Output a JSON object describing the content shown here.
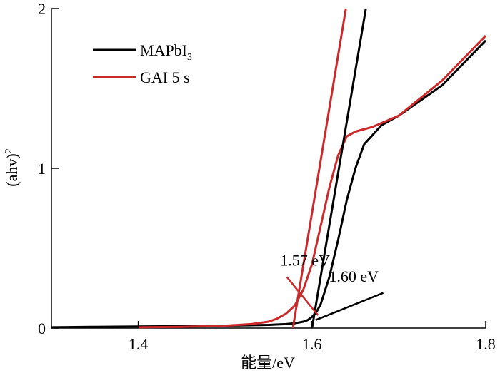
{
  "chart_data": {
    "type": "line",
    "title": "",
    "xlabel": "能量/eV",
    "ylabel": "(ahv)",
    "ylabel_sup": "2",
    "xlim": [
      1.3,
      1.8
    ],
    "ylim": [
      0,
      2
    ],
    "xticks": [
      1.4,
      1.6,
      1.8
    ],
    "yticks": [
      0,
      1,
      2
    ],
    "xtick_labels": [
      "1.4",
      "1.6",
      "1.8"
    ],
    "ytick_labels": [
      "0",
      "1",
      "2"
    ],
    "grid": false,
    "legend_position": "top-left",
    "series": [
      {
        "name": "MAPbI",
        "name_sub": "3",
        "color": "#000000",
        "x": [
          1.3,
          1.35,
          1.4,
          1.45,
          1.5,
          1.55,
          1.57,
          1.58,
          1.59,
          1.595,
          1.6,
          1.605,
          1.61,
          1.62,
          1.63,
          1.64,
          1.65,
          1.66,
          1.68,
          1.7,
          1.75,
          1.8
        ],
        "y": [
          0.005,
          0.008,
          0.01,
          0.012,
          0.015,
          0.02,
          0.025,
          0.03,
          0.04,
          0.05,
          0.07,
          0.1,
          0.15,
          0.32,
          0.55,
          0.8,
          1.0,
          1.15,
          1.27,
          1.33,
          1.52,
          1.8
        ]
      },
      {
        "name": "GAI 5 s",
        "color": "#cc2a2a",
        "x": [
          1.4,
          1.45,
          1.5,
          1.53,
          1.55,
          1.56,
          1.57,
          1.58,
          1.59,
          1.6,
          1.61,
          1.62,
          1.63,
          1.64,
          1.65,
          1.67,
          1.7,
          1.75,
          1.8
        ],
        "y": [
          0.005,
          0.008,
          0.015,
          0.025,
          0.04,
          0.06,
          0.09,
          0.14,
          0.24,
          0.4,
          0.64,
          0.88,
          1.08,
          1.2,
          1.23,
          1.26,
          1.33,
          1.55,
          1.83
        ]
      }
    ],
    "tangent_lines": [
      {
        "color": "#cc2a2a",
        "x": [
          1.578,
          1.639
        ],
        "y": [
          0,
          2
        ]
      },
      {
        "color": "#000000",
        "x": [
          1.6,
          1.662
        ],
        "y": [
          0,
          2
        ]
      }
    ],
    "annotations": [
      {
        "text": "1.57 eV",
        "color": "#cc2a2a",
        "text_x": 1.592,
        "text_y": 0.39,
        "line_from": [
          1.571,
          0.32
        ],
        "line_to": [
          1.607,
          0.08
        ]
      },
      {
        "text": "1.60 eV",
        "color": "#000000",
        "text_x": 1.648,
        "text_y": 0.29,
        "line_from": [
          1.682,
          0.22
        ],
        "line_to": [
          1.604,
          0.05
        ]
      }
    ]
  }
}
